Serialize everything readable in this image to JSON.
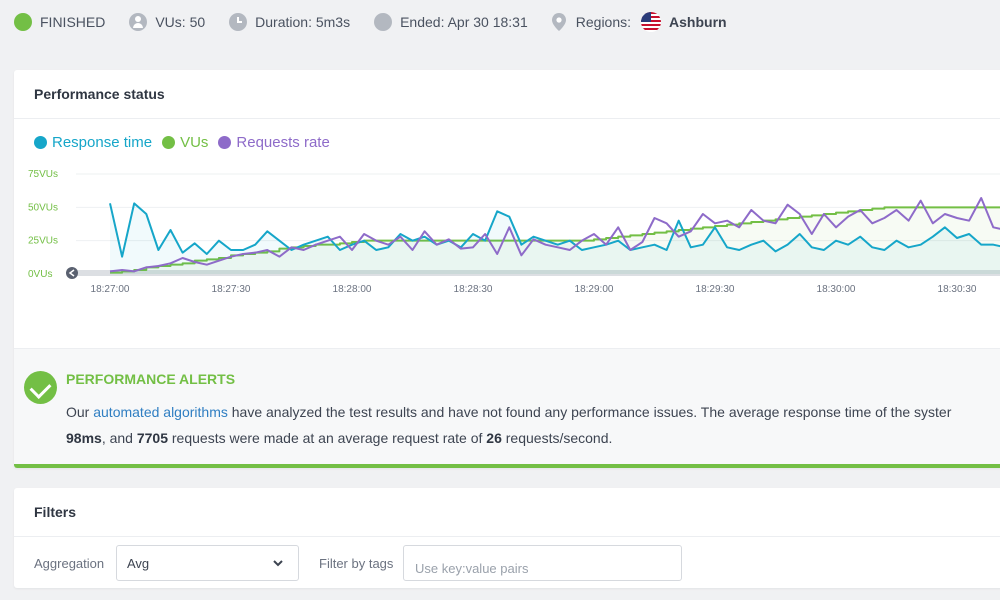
{
  "status_bar": {
    "status": "FINISHED",
    "vus": "VUs: 50",
    "duration": "Duration: 5m3s",
    "ended": "Ended: Apr 30 18:31",
    "regions_label": "Regions:",
    "region": "Ashburn"
  },
  "performance": {
    "title": "Performance status",
    "legend": [
      {
        "label": "Response time",
        "color": "#16a6c9"
      },
      {
        "label": "VUs",
        "color": "#73bf45"
      },
      {
        "label": "Requests rate",
        "color": "#8e6bc9"
      }
    ]
  },
  "chart_data": {
    "type": "line",
    "y_axis_label_suffix": "VUs",
    "y_ticks": [
      "0VUs",
      "25VUs",
      "50VUs",
      "75VUs"
    ],
    "ylim": [
      0,
      75
    ],
    "x_ticks": [
      "18:27:00",
      "18:27:30",
      "18:28:00",
      "18:28:30",
      "18:29:00",
      "18:29:30",
      "18:30:00",
      "18:30:30"
    ],
    "x_start_seconds": 0,
    "x_tick_interval_seconds": 30,
    "series": [
      {
        "name": "VUs",
        "color": "#73bf45",
        "x_seconds": [
          0,
          3,
          6,
          9,
          12,
          15,
          18,
          21,
          24,
          27,
          30,
          33,
          36,
          39,
          42,
          45,
          48,
          51,
          54,
          57,
          60,
          63,
          66,
          69,
          72,
          75,
          78,
          81,
          84,
          87,
          90,
          93,
          96,
          99,
          102,
          105,
          108,
          111,
          114,
          117,
          120,
          123,
          126,
          129,
          132,
          135,
          138,
          141,
          144,
          147,
          150,
          153,
          156,
          159,
          162,
          165,
          168,
          171,
          174,
          177,
          180,
          183,
          186,
          189,
          192,
          195,
          198,
          201,
          204,
          207,
          210,
          213,
          216,
          219,
          222
        ],
        "values": [
          1,
          2,
          3,
          5,
          6,
          7,
          8,
          10,
          11,
          12,
          14,
          15,
          16,
          17,
          19,
          20,
          21,
          22,
          22,
          23,
          24,
          25,
          25,
          25,
          25,
          25,
          25,
          25,
          25,
          25,
          25,
          25,
          25,
          25,
          25,
          25,
          25,
          25,
          25,
          25,
          26,
          27,
          28,
          29,
          30,
          31,
          32,
          33,
          34,
          35,
          36,
          37,
          38,
          39,
          40,
          41,
          42,
          43,
          44,
          45,
          46,
          47,
          48,
          49,
          50,
          50,
          50,
          50,
          50,
          50,
          50,
          50,
          50,
          50,
          50
        ]
      },
      {
        "name": "Response time",
        "color": "#16a6c9",
        "x_seconds": [
          0,
          3,
          6,
          9,
          12,
          15,
          18,
          21,
          24,
          27,
          30,
          33,
          36,
          39,
          42,
          45,
          48,
          51,
          54,
          57,
          60,
          63,
          66,
          69,
          72,
          75,
          78,
          81,
          84,
          87,
          90,
          93,
          96,
          99,
          102,
          105,
          108,
          111,
          114,
          117,
          120,
          123,
          126,
          129,
          132,
          135,
          138,
          141,
          144,
          147,
          150,
          153,
          156,
          159,
          162,
          165,
          168,
          171,
          174,
          177,
          180,
          183,
          186,
          189,
          192,
          195,
          198,
          201,
          204,
          207,
          210,
          213,
          216,
          219,
          222
        ],
        "values": [
          53,
          13,
          53,
          45,
          18,
          33,
          16,
          23,
          15,
          25,
          18,
          18,
          22,
          32,
          25,
          18,
          22,
          25,
          28,
          18,
          22,
          25,
          18,
          20,
          30,
          25,
          28,
          22,
          25,
          20,
          30,
          25,
          47,
          43,
          22,
          28,
          25,
          22,
          25,
          18,
          20,
          22,
          25,
          18,
          20,
          22,
          18,
          40,
          20,
          22,
          35,
          20,
          18,
          22,
          25,
          17,
          22,
          30,
          20,
          18,
          25,
          22,
          28,
          20,
          18,
          25,
          20,
          22,
          28,
          35,
          27,
          30,
          22,
          22,
          20
        ]
      },
      {
        "name": "Requests rate",
        "color": "#8e6bc9",
        "x_seconds": [
          0,
          3,
          6,
          9,
          12,
          15,
          18,
          21,
          24,
          27,
          30,
          33,
          36,
          39,
          42,
          45,
          48,
          51,
          54,
          57,
          60,
          63,
          66,
          69,
          72,
          75,
          78,
          81,
          84,
          87,
          90,
          93,
          96,
          99,
          102,
          105,
          108,
          111,
          114,
          117,
          120,
          123,
          126,
          129,
          132,
          135,
          138,
          141,
          144,
          147,
          150,
          153,
          156,
          159,
          162,
          165,
          168,
          171,
          174,
          177,
          180,
          183,
          186,
          189,
          192,
          195,
          198,
          201,
          204,
          207,
          210,
          213,
          216,
          219,
          222
        ],
        "values": [
          2,
          3,
          2,
          5,
          6,
          8,
          12,
          9,
          7,
          10,
          13,
          15,
          16,
          18,
          13,
          20,
          18,
          22,
          25,
          28,
          18,
          30,
          25,
          22,
          28,
          18,
          32,
          22,
          26,
          19,
          20,
          30,
          15,
          35,
          14,
          26,
          22,
          20,
          18,
          25,
          30,
          22,
          35,
          18,
          24,
          42,
          38,
          28,
          32,
          45,
          38,
          40,
          35,
          48,
          40,
          38,
          52,
          45,
          30,
          45,
          35,
          43,
          48,
          38,
          42,
          48,
          40,
          55,
          38,
          45,
          42,
          40,
          57,
          35,
          33
        ]
      }
    ]
  },
  "alerts": {
    "title": "PERFORMANCE ALERTS",
    "text_prefix": "Our ",
    "link": "automated algorithms",
    "text_middle": " have analyzed the test results and have not found any performance issues. The average response time of the syster",
    "avg_response": "98ms",
    "line2_a": ", and ",
    "requests": "7705",
    "line2_b": " requests were made at an average request rate of ",
    "rate": "26",
    "line2_c": " requests/second."
  },
  "filters": {
    "title": "Filters",
    "aggregation_label": "Aggregation",
    "aggregation_value": "Avg",
    "tags_label": "Filter by tags",
    "tags_placeholder": "Use key:value pairs"
  }
}
